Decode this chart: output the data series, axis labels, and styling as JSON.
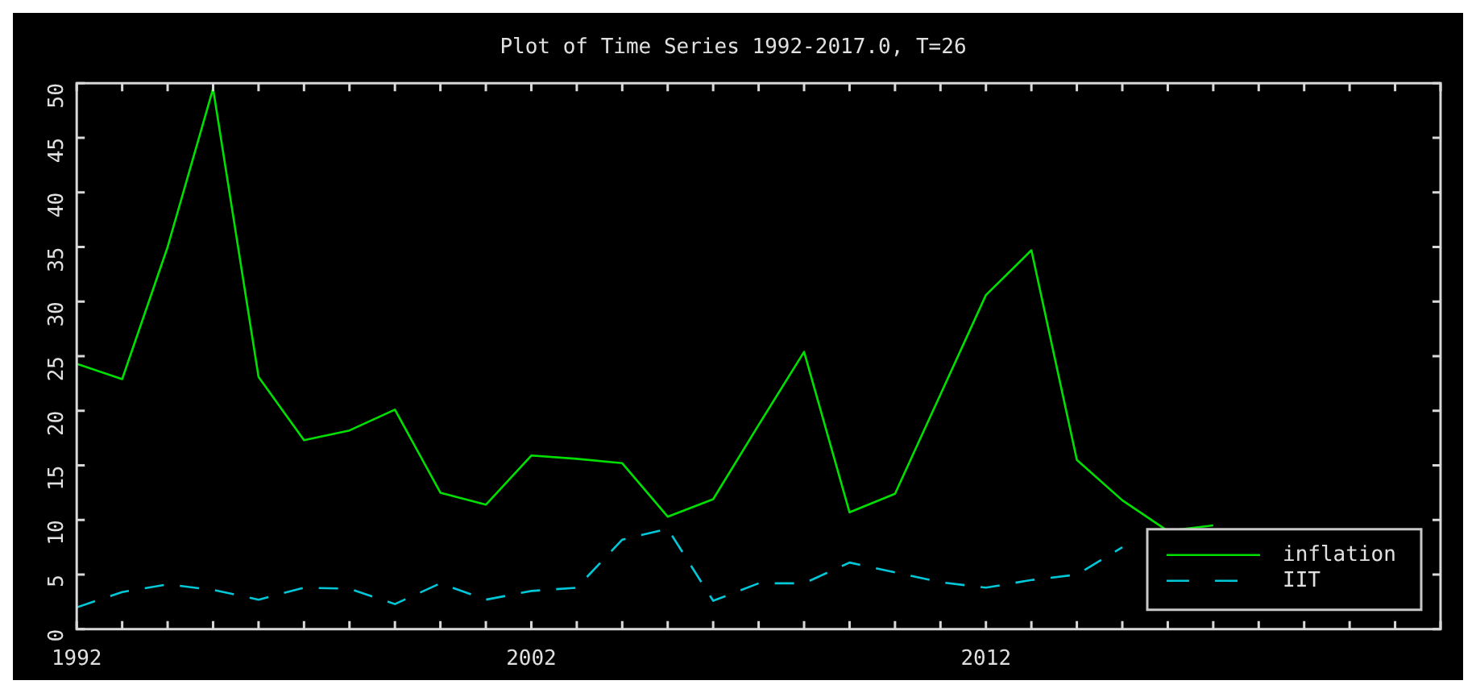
{
  "chart_data": {
    "type": "line",
    "title": "Plot of Time Series 1992-2017.0, T=26",
    "x": [
      1992,
      1993,
      1994,
      1995,
      1996,
      1997,
      1998,
      1999,
      2000,
      2001,
      2002,
      2003,
      2004,
      2005,
      2006,
      2007,
      2008,
      2009,
      2010,
      2011,
      2012,
      2013,
      2014,
      2015,
      2016,
      2017
    ],
    "series": [
      {
        "name": "inflation",
        "color": "#00e000",
        "line_style": "solid",
        "values": [
          24.3,
          22.9,
          35,
          49.5,
          23.1,
          17.3,
          18.2,
          20.1,
          12.5,
          11.4,
          15.9,
          15.6,
          15.2,
          10.3,
          11.9,
          18.7,
          25.4,
          10.7,
          12.4,
          21.5,
          30.6,
          34.7,
          15.5,
          11.8,
          9.0,
          9.5
        ]
      },
      {
        "name": "IIT",
        "color": "#00c8d8",
        "line_style": "dashed",
        "values": [
          2.0,
          3.4,
          4.1,
          3.6,
          2.7,
          3.8,
          3.7,
          2.3,
          4.2,
          2.7,
          3.5,
          3.8,
          8.2,
          9.2,
          2.6,
          4.2,
          4.2,
          6.1,
          5.2,
          4.3,
          3.8,
          4.5,
          5.0,
          7.5,
          null,
          null
        ]
      }
    ],
    "xlim": [
      1992,
      2022
    ],
    "xticks": [
      1992,
      {
        "value": 1993,
        "label": null
      },
      {
        "value": 1994,
        "label": null
      },
      {
        "value": 1995,
        "label": null
      },
      {
        "value": 1996,
        "label": null
      },
      {
        "value": 1997,
        "label": null
      },
      {
        "value": 1998,
        "label": null
      },
      {
        "value": 1999,
        "label": null
      },
      {
        "value": 2000,
        "label": null
      },
      {
        "value": 2001,
        "label": null
      },
      2002,
      {
        "value": 2003,
        "label": null
      },
      {
        "value": 2004,
        "label": null
      },
      {
        "value": 2005,
        "label": null
      },
      {
        "value": 2006,
        "label": null
      },
      {
        "value": 2007,
        "label": null
      },
      {
        "value": 2008,
        "label": null
      },
      {
        "value": 2009,
        "label": null
      },
      {
        "value": 2010,
        "label": null
      },
      {
        "value": 2011,
        "label": null
      },
      2012,
      {
        "value": 2013,
        "label": null
      },
      {
        "value": 2014,
        "label": null
      },
      {
        "value": 2015,
        "label": null
      },
      {
        "value": 2016,
        "label": null
      },
      {
        "value": 2017,
        "label": null
      },
      {
        "value": 2018,
        "label": null
      },
      {
        "value": 2019,
        "label": null
      },
      {
        "value": 2020,
        "label": null
      },
      {
        "value": 2021,
        "label": null
      },
      {
        "value": 2022,
        "label": null
      }
    ],
    "ylim": [
      0,
      50
    ],
    "yticks": [
      0,
      5,
      10,
      15,
      20,
      25,
      30,
      35,
      40,
      45,
      50
    ],
    "grid": false,
    "legend": "bottom right",
    "marker": "none"
  }
}
